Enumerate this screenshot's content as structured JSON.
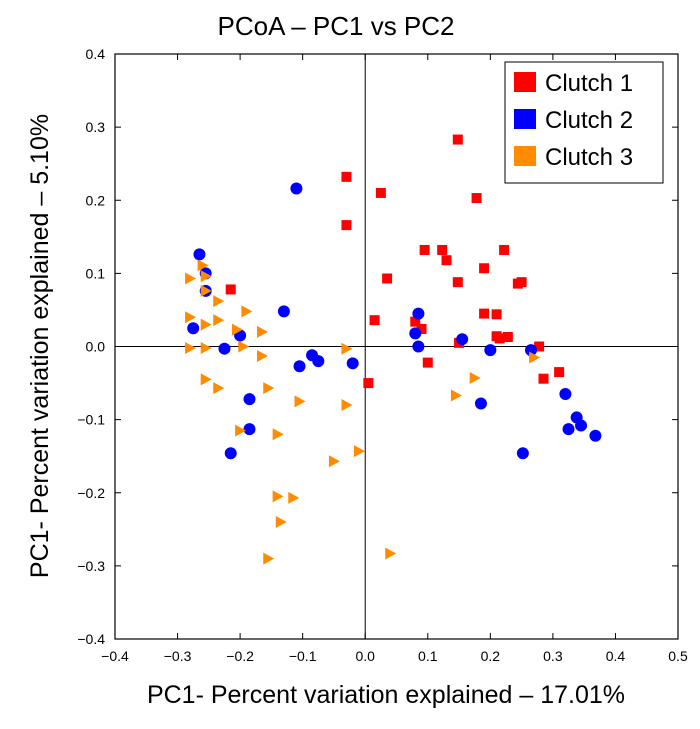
{
  "chart_data": {
    "type": "scatter",
    "title": "PCoA – PC1 vs PC2",
    "xlabel": "PC1- Percent variation explained – 17.01%",
    "ylabel": "PC1- Percent variation explained – 5.10%",
    "xlim": [
      -0.4,
      0.5
    ],
    "ylim": [
      -0.4,
      0.4
    ],
    "xticks": [
      -0.4,
      -0.3,
      -0.2,
      -0.1,
      0.0,
      0.1,
      0.2,
      0.3,
      0.4,
      0.5
    ],
    "yticks": [
      -0.4,
      -0.3,
      -0.2,
      -0.1,
      0.0,
      0.1,
      0.2,
      0.3,
      0.4
    ],
    "xtick_labels": [
      "−0.4",
      "−0.3",
      "−0.2",
      "−0.1",
      "0.0",
      "0.1",
      "0.2",
      "0.3",
      "0.4",
      "0.5"
    ],
    "ytick_labels": [
      "−0.4",
      "−0.3",
      "−0.2",
      "−0.1",
      "0.0",
      "0.1",
      "0.2",
      "0.3",
      "0.4"
    ],
    "grid": false,
    "zero_lines": true,
    "legend_position": "top-right",
    "series": [
      {
        "name": "Clutch 1",
        "color": "#ff0000",
        "marker": "square",
        "points": [
          [
            -0.215,
            0.078
          ],
          [
            -0.03,
            0.232
          ],
          [
            -0.03,
            0.166
          ],
          [
            0.025,
            0.21
          ],
          [
            0.148,
            0.283
          ],
          [
            0.178,
            0.203
          ],
          [
            0.095,
            0.132
          ],
          [
            0.123,
            0.132
          ],
          [
            0.13,
            0.118
          ],
          [
            0.222,
            0.132
          ],
          [
            0.035,
            0.093
          ],
          [
            0.148,
            0.088
          ],
          [
            0.19,
            0.107
          ],
          [
            0.244,
            0.086
          ],
          [
            0.25,
            0.088
          ],
          [
            0.015,
            0.036
          ],
          [
            0.08,
            0.034
          ],
          [
            0.09,
            0.024
          ],
          [
            0.19,
            0.045
          ],
          [
            0.21,
            0.044
          ],
          [
            0.21,
            0.014
          ],
          [
            0.215,
            0.011
          ],
          [
            0.228,
            0.013
          ],
          [
            0.15,
            0.005
          ],
          [
            0.1,
            -0.022
          ],
          [
            0.278,
            0.0
          ],
          [
            0.005,
            -0.05
          ],
          [
            0.285,
            -0.044
          ],
          [
            0.31,
            -0.035
          ]
        ]
      },
      {
        "name": "Clutch 2",
        "color": "#0000ff",
        "marker": "circle",
        "points": [
          [
            -0.265,
            0.126
          ],
          [
            -0.255,
            0.1
          ],
          [
            -0.255,
            0.076
          ],
          [
            -0.275,
            0.025
          ],
          [
            -0.225,
            -0.003
          ],
          [
            -0.2,
            0.015
          ],
          [
            -0.13,
            0.048
          ],
          [
            -0.11,
            0.216
          ],
          [
            -0.085,
            -0.012
          ],
          [
            -0.075,
            -0.02
          ],
          [
            -0.105,
            -0.027
          ],
          [
            -0.02,
            -0.023
          ],
          [
            -0.185,
            -0.072
          ],
          [
            -0.185,
            -0.113
          ],
          [
            -0.215,
            -0.146
          ],
          [
            0.08,
            0.018
          ],
          [
            0.085,
            0.045
          ],
          [
            0.085,
            0.0
          ],
          [
            0.155,
            0.01
          ],
          [
            0.2,
            -0.005
          ],
          [
            0.265,
            -0.005
          ],
          [
            0.185,
            -0.078
          ],
          [
            0.32,
            -0.065
          ],
          [
            0.325,
            -0.113
          ],
          [
            0.338,
            -0.097
          ],
          [
            0.345,
            -0.108
          ],
          [
            0.368,
            -0.122
          ],
          [
            0.252,
            -0.146
          ]
        ]
      },
      {
        "name": "Clutch 3",
        "color": "#ff8c00",
        "marker": "triangle-right",
        "points": [
          [
            -0.28,
            0.093
          ],
          [
            -0.26,
            0.111
          ],
          [
            -0.255,
            0.096
          ],
          [
            -0.255,
            0.076
          ],
          [
            -0.28,
            0.04
          ],
          [
            -0.235,
            0.062
          ],
          [
            -0.19,
            0.048
          ],
          [
            -0.235,
            0.036
          ],
          [
            -0.255,
            0.03
          ],
          [
            -0.165,
            0.02
          ],
          [
            -0.28,
            -0.002
          ],
          [
            -0.255,
            -0.002
          ],
          [
            -0.205,
            0.023
          ],
          [
            -0.195,
            0.0
          ],
          [
            -0.165,
            -0.013
          ],
          [
            -0.255,
            -0.045
          ],
          [
            -0.235,
            -0.057
          ],
          [
            -0.155,
            -0.057
          ],
          [
            -0.2,
            -0.115
          ],
          [
            -0.14,
            -0.12
          ],
          [
            -0.105,
            -0.075
          ],
          [
            -0.03,
            -0.08
          ],
          [
            -0.03,
            -0.003
          ],
          [
            -0.14,
            -0.205
          ],
          [
            -0.115,
            -0.207
          ],
          [
            -0.135,
            -0.24
          ],
          [
            -0.155,
            -0.29
          ],
          [
            -0.05,
            -0.157
          ],
          [
            -0.01,
            -0.143
          ],
          [
            0.04,
            -0.283
          ],
          [
            0.145,
            -0.067
          ],
          [
            0.175,
            -0.043
          ],
          [
            0.27,
            -0.015
          ]
        ]
      }
    ]
  }
}
